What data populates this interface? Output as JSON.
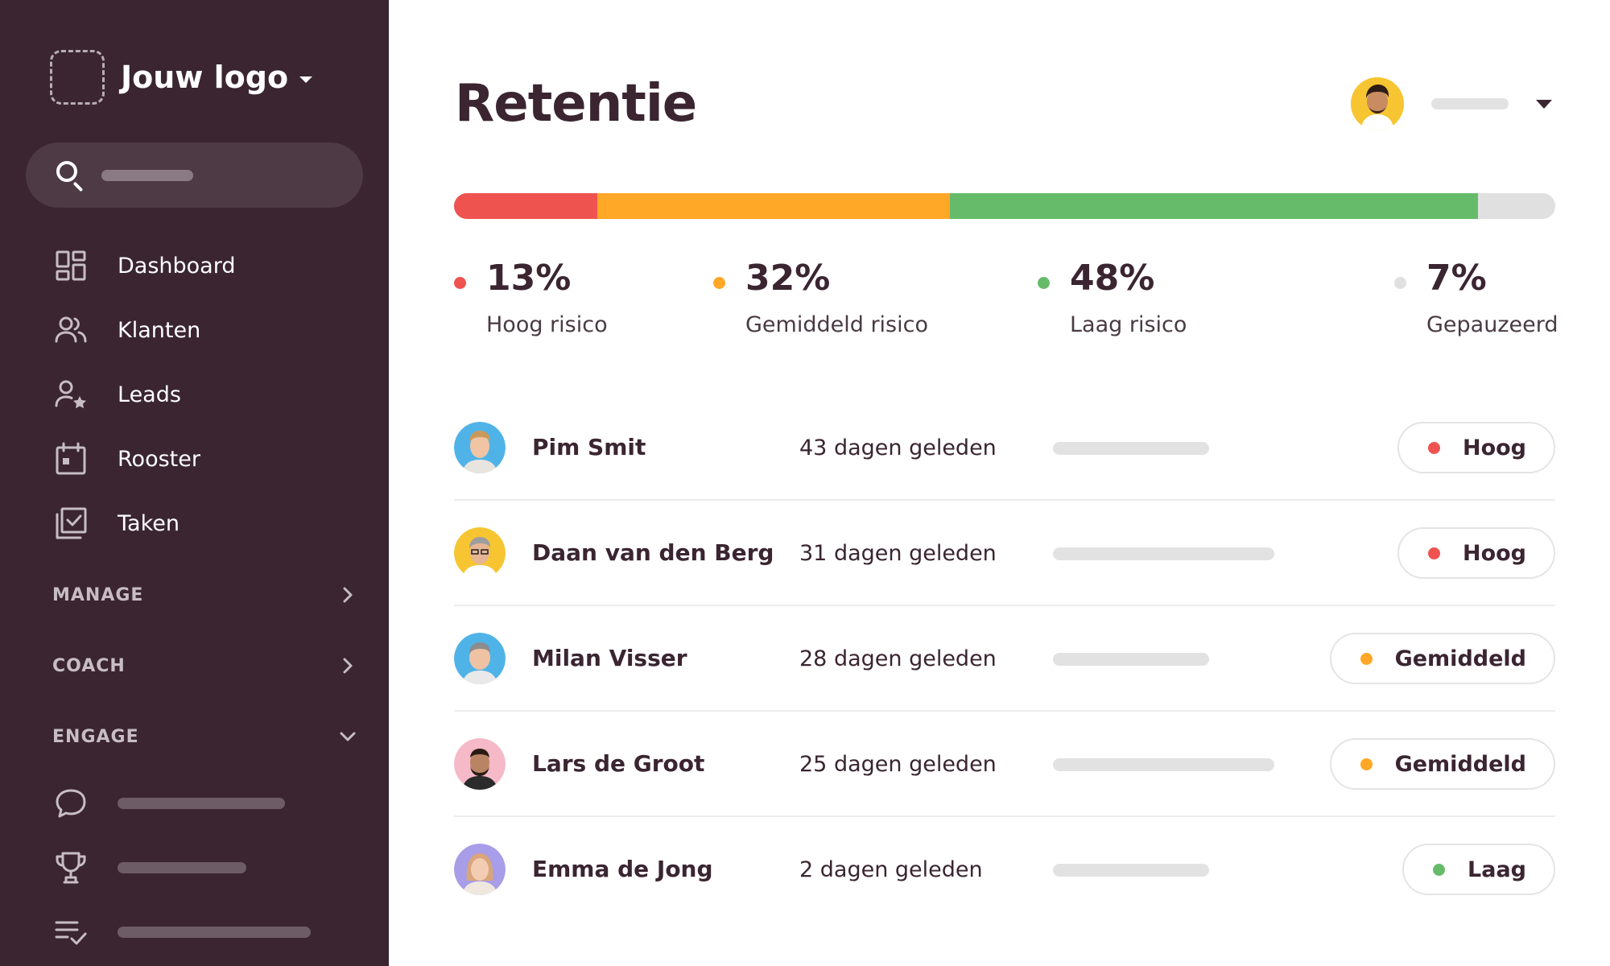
{
  "brand": {
    "logo_text": "Jouw logo"
  },
  "colors": {
    "sidebar_bg": "#3a2531",
    "high": "#ef5350",
    "medium": "#ffa726",
    "low": "#66bb6a",
    "paused": "#e0e0e0"
  },
  "sidebar": {
    "search_icon": "search-icon",
    "items": [
      {
        "label": "Dashboard",
        "icon": "dashboard-icon"
      },
      {
        "label": "Klanten",
        "icon": "users-icon"
      },
      {
        "label": "Leads",
        "icon": "user-star-icon"
      },
      {
        "label": "Rooster",
        "icon": "calendar-icon"
      },
      {
        "label": "Taken",
        "icon": "tasks-icon"
      }
    ],
    "sections": [
      {
        "label": "MANAGE",
        "state": "collapsed"
      },
      {
        "label": "COACH",
        "state": "collapsed"
      },
      {
        "label": "ENGAGE",
        "state": "expanded"
      }
    ],
    "engage_items": [
      {
        "icon": "chat-icon"
      },
      {
        "icon": "trophy-icon"
      },
      {
        "icon": "checklist-icon"
      }
    ]
  },
  "main": {
    "title": "Retentie",
    "risk_distribution": [
      {
        "key": "high",
        "percent": 13,
        "percent_label": "13%",
        "label": "Hoog risico"
      },
      {
        "key": "medium",
        "percent": 32,
        "percent_label": "32%",
        "label": "Gemiddeld risico"
      },
      {
        "key": "low",
        "percent": 48,
        "percent_label": "48%",
        "label": "Laag risico"
      },
      {
        "key": "paused",
        "percent": 7,
        "percent_label": "7%",
        "label": "Gepauzeerd"
      }
    ],
    "clients": [
      {
        "name": "Pim Smit",
        "since": "43 dagen geleden",
        "risk": "Hoog",
        "risk_key": "high"
      },
      {
        "name": "Daan van den Berg",
        "since": "31 dagen geleden",
        "risk": "Hoog",
        "risk_key": "high"
      },
      {
        "name": "Milan Visser",
        "since": "28 dagen geleden",
        "risk": "Gemiddeld",
        "risk_key": "medium"
      },
      {
        "name": "Lars de Groot",
        "since": "25 dagen geleden",
        "risk": "Gemiddeld",
        "risk_key": "medium"
      },
      {
        "name": "Emma de Jong",
        "since": "2 dagen geleden",
        "risk": "Laag",
        "risk_key": "low"
      }
    ]
  }
}
